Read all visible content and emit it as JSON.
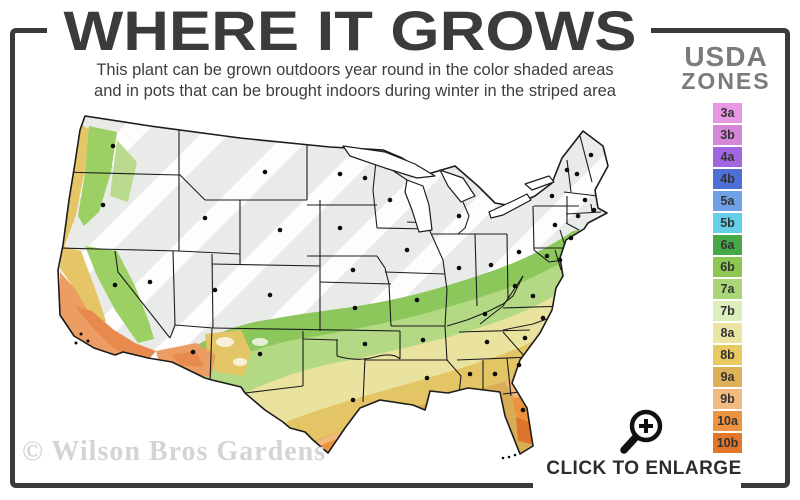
{
  "header": {
    "title": "WHERE IT GROWS",
    "subtitle_line1": "This plant can be grown outdoors year round in the color shaded areas",
    "subtitle_line2": "and in pots that can be brought indoors during winter in the striped area"
  },
  "legend": {
    "title_line1": "USDA",
    "title_line2": "ZONES",
    "zones": [
      {
        "label": "3a",
        "color": "#e898e2"
      },
      {
        "label": "3b",
        "color": "#d688d8"
      },
      {
        "label": "4a",
        "color": "#a266e0"
      },
      {
        "label": "4b",
        "color": "#4d6fd6"
      },
      {
        "label": "5a",
        "color": "#6fa0e8"
      },
      {
        "label": "5b",
        "color": "#64cfe6"
      },
      {
        "label": "6a",
        "color": "#46a847"
      },
      {
        "label": "6b",
        "color": "#8cc653"
      },
      {
        "label": "7a",
        "color": "#abd677"
      },
      {
        "label": "7b",
        "color": "#dcedbe"
      },
      {
        "label": "8a",
        "color": "#ebe5a4"
      },
      {
        "label": "8b",
        "color": "#e7ca62"
      },
      {
        "label": "9a",
        "color": "#dcb157"
      },
      {
        "label": "9b",
        "color": "#f1ba80"
      },
      {
        "label": "10a",
        "color": "#ee9440"
      },
      {
        "label": "10b",
        "color": "#e2762b"
      }
    ]
  },
  "map": {
    "watermark": "© Wilson Bros Gardens",
    "marker_color": "#0c0c0c",
    "border_color": "#1c1c1c",
    "palette": {
      "base": "#e9ebe9",
      "stripe": "#fdfdfd",
      "green": "#8cc75c",
      "lightgreen": "#b3d985",
      "paleyellow": "#eae3a0",
      "gold": "#e3c566",
      "tan": "#d9ad56",
      "peach": "#f1ba80",
      "orange": "#ec9340",
      "darkorange": "#df752c",
      "pnwgold": "#e5c565",
      "pnwgreen": "#9ccf64",
      "pnwgreen2": "#bada90",
      "socal": "#eb9d63",
      "salmon": "#e88a4d"
    }
  },
  "footer": {
    "enlarge_label": "CLICK TO ENLARGE",
    "magnifier_icon": "magnifying-glass-plus-icon"
  },
  "frame_color": "#3a3a3a"
}
